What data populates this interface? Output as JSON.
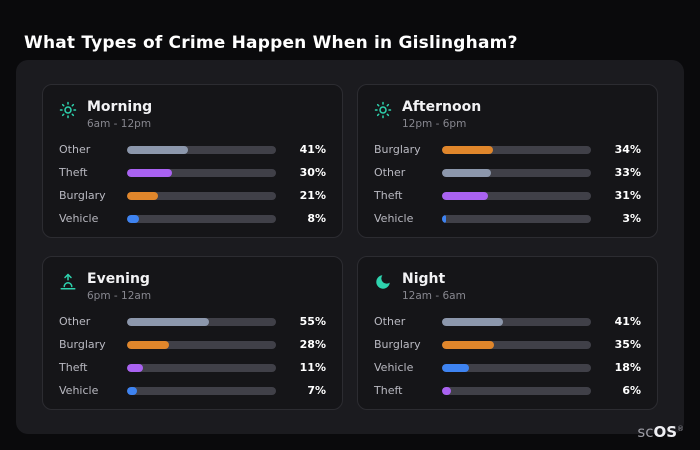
{
  "title": "What Types of Crime Happen When in Gislingham?",
  "brand": {
    "sc": "sc",
    "os": "OS",
    "reg": "®"
  },
  "colors": {
    "background": "#0a0a0c",
    "panel": "#1b1b1f",
    "card": "#151518",
    "bar_track": "#404048",
    "accent_teal": "#2ED3AE",
    "other": "#8C97AC",
    "theft": "#A962F1",
    "burglary": "#E0862B",
    "vehicle": "#3E83F1"
  },
  "icons": {
    "morning": "sun-icon",
    "afternoon": "sun-icon",
    "evening": "sunset-icon",
    "night": "moon-icon"
  },
  "chart_data": [
    {
      "type": "bar",
      "title": "Morning",
      "subtitle": "6am - 12pm",
      "icon": "sun-icon",
      "xlim": [
        0,
        100
      ],
      "categories": [
        "Other",
        "Theft",
        "Burglary",
        "Vehicle"
      ],
      "values": [
        41,
        30,
        21,
        8
      ],
      "value_labels": [
        "41%",
        "30%",
        "21%",
        "8%"
      ],
      "colors": [
        "#8C97AC",
        "#A962F1",
        "#E0862B",
        "#3E83F1"
      ]
    },
    {
      "type": "bar",
      "title": "Afternoon",
      "subtitle": "12pm - 6pm",
      "icon": "sun-icon",
      "xlim": [
        0,
        100
      ],
      "categories": [
        "Burglary",
        "Other",
        "Theft",
        "Vehicle"
      ],
      "values": [
        34,
        33,
        31,
        3
      ],
      "value_labels": [
        "34%",
        "33%",
        "31%",
        "3%"
      ],
      "colors": [
        "#E0862B",
        "#8C97AC",
        "#A962F1",
        "#3E83F1"
      ]
    },
    {
      "type": "bar",
      "title": "Evening",
      "subtitle": "6pm - 12am",
      "icon": "sunset-icon",
      "xlim": [
        0,
        100
      ],
      "categories": [
        "Other",
        "Burglary",
        "Theft",
        "Vehicle"
      ],
      "values": [
        55,
        28,
        11,
        7
      ],
      "value_labels": [
        "55%",
        "28%",
        "11%",
        "7%"
      ],
      "colors": [
        "#8C97AC",
        "#E0862B",
        "#A962F1",
        "#3E83F1"
      ]
    },
    {
      "type": "bar",
      "title": "Night",
      "subtitle": "12am - 6am",
      "icon": "moon-icon",
      "xlim": [
        0,
        100
      ],
      "categories": [
        "Other",
        "Burglary",
        "Vehicle",
        "Theft"
      ],
      "values": [
        41,
        35,
        18,
        6
      ],
      "value_labels": [
        "41%",
        "35%",
        "18%",
        "6%"
      ],
      "colors": [
        "#8C97AC",
        "#E0862B",
        "#3E83F1",
        "#A962F1"
      ]
    }
  ]
}
